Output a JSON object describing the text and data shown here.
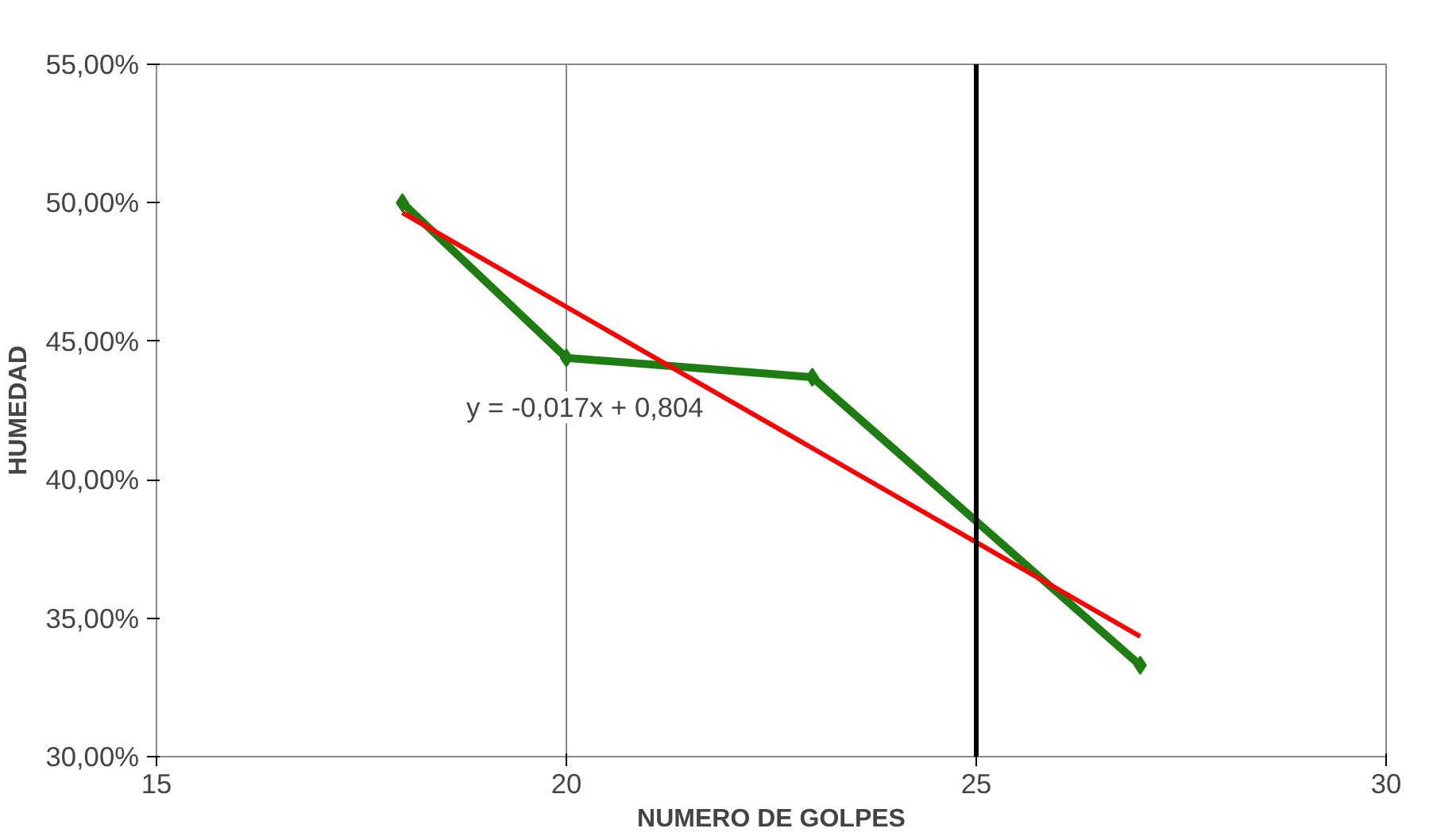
{
  "chart_data": {
    "type": "line",
    "xlabel": "NUMERO DE GOLPES",
    "ylabel": "HUMEDAD",
    "xlim": [
      15,
      30
    ],
    "xticks": [
      15,
      20,
      25,
      30
    ],
    "ylim": [
      0.3,
      0.55
    ],
    "yticks": [
      {
        "value": 0.3,
        "label": "30,00%"
      },
      {
        "value": 0.35,
        "label": "35,00%"
      },
      {
        "value": 0.4,
        "label": "40,00%"
      },
      {
        "value": 0.45,
        "label": "45,00%"
      },
      {
        "value": 0.5,
        "label": "50,00%"
      },
      {
        "value": 0.55,
        "label": "55,00%"
      }
    ],
    "grid": "x",
    "series": [
      {
        "color": "#1e7d12",
        "x": [
          18,
          20,
          23,
          27
        ],
        "values": [
          0.5,
          0.444,
          0.437,
          0.333
        ],
        "marker": "diamond",
        "line_style": "solid"
      },
      {
        "color": "#ff0000",
        "x": [
          18,
          27
        ],
        "values": [
          0.4964,
          0.3434
        ],
        "marker": "none",
        "line_style": "solid"
      }
    ],
    "ref_lines": [
      {
        "axis": "x",
        "value": 25,
        "color": "#000000"
      }
    ],
    "annotations": [
      "y = -0,017x + 0,804"
    ]
  }
}
